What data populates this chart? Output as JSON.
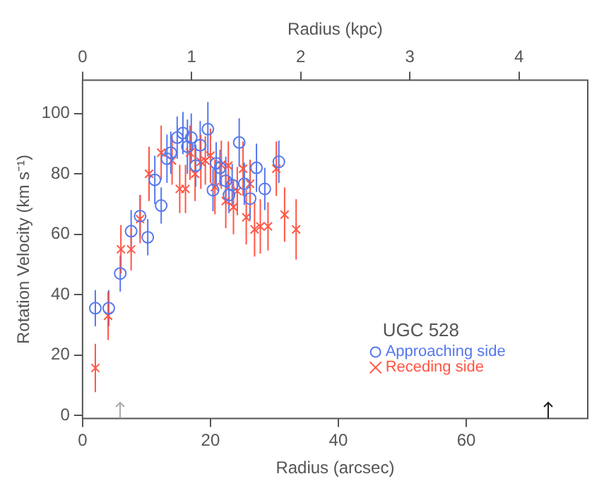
{
  "chart_data": {
    "type": "scatter",
    "xlabel": "Radius (arcsec)",
    "ylabel": "Rotation Velocity (km s⁻¹)",
    "x2label": "Radius (kpc)",
    "legend_title": "UGC 528",
    "legend": "bottom right",
    "grid": false,
    "xlim": [
      0,
      79
    ],
    "xticks": [
      0,
      20,
      40,
      60
    ],
    "ylim": [
      -1,
      111
    ],
    "yticks": [
      0,
      20,
      40,
      60,
      80,
      100
    ],
    "x2lim": [
      0,
      4.63
    ],
    "x2ticks": [
      0,
      1,
      2,
      3,
      4
    ],
    "series": [
      {
        "name": "Approaching side",
        "color": "#5577ee",
        "marker": "circle",
        "x": [
          2.0,
          4.1,
          5.9,
          7.6,
          9.0,
          10.2,
          11.3,
          12.3,
          13.2,
          13.8,
          14.8,
          15.7,
          16.4,
          17.0,
          17.7,
          18.4,
          19.6,
          20.4,
          20.9,
          21.5,
          22.4,
          22.9,
          23.4,
          24.5,
          25.3,
          26.2,
          27.2,
          28.5,
          30.7
        ],
        "values": [
          35.5,
          35.5,
          47,
          61,
          66,
          59,
          78,
          69.5,
          85,
          87,
          92,
          93.5,
          89,
          92,
          82.7,
          89.5,
          94.8,
          74.6,
          83.5,
          82,
          77.7,
          73,
          76.3,
          90.4,
          76.7,
          71.8,
          82,
          75,
          84
        ],
        "errors": [
          6,
          6,
          6,
          7,
          7,
          6,
          8,
          6,
          8,
          7,
          7,
          7,
          9,
          8,
          7,
          8,
          9,
          7,
          7,
          6,
          8,
          6,
          7,
          8,
          7,
          7,
          8,
          7,
          7
        ]
      },
      {
        "name": "Receding side",
        "color": "#ff5544",
        "marker": "cross",
        "x": [
          2.0,
          4.0,
          6.0,
          7.6,
          9.0,
          10.4,
          12.3,
          14.0,
          15.2,
          16.1,
          16.8,
          17.6,
          18.5,
          19.2,
          20.0,
          20.7,
          21.7,
          22.4,
          22.8,
          23.6,
          24.2,
          25.1,
          25.6,
          26.2,
          26.9,
          27.8,
          29.0,
          30.3,
          31.6,
          33.4
        ],
        "values": [
          15.7,
          33,
          55,
          55,
          65,
          80,
          87,
          84.4,
          75,
          75,
          87,
          80,
          84,
          84.4,
          86,
          75.6,
          83,
          71,
          82.7,
          69,
          74.3,
          81.7,
          65.6,
          76.7,
          61.6,
          62.6,
          62.6,
          81.7,
          66.5,
          61.6
        ],
        "errors": [
          8,
          8,
          8,
          7,
          8,
          9,
          9,
          8,
          8,
          8,
          9,
          9,
          9,
          8,
          9,
          9,
          8,
          9,
          8,
          9,
          8,
          9,
          9,
          8,
          9,
          9,
          8,
          9,
          9,
          10
        ]
      }
    ]
  }
}
